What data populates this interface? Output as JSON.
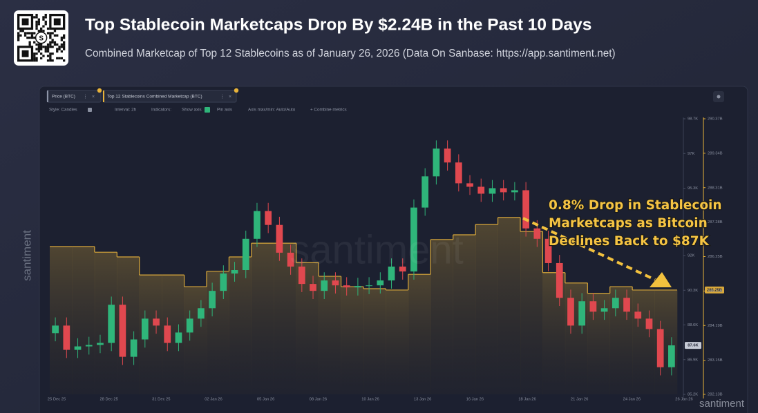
{
  "header": {
    "title": "Top Stablecoin Marketcaps Drop By $2.24B in the Past 10 Days",
    "subtitle": "Combined Marketcap of Top 12 Stablecoins as of January 26, 2026 (Data On Sanbase: https://app.santiment.net)"
  },
  "chart_data": {
    "type": "candlestick",
    "toolbar": [
      "Style: Candles",
      "Interval: 2h",
      "Indicators:",
      "Show axis",
      "Pin axis",
      "Axis max/min: Auto/Auto",
      "+ Combine metrics"
    ],
    "watermark": "santiment",
    "annotation": [
      "0.8% Drop in Stablecoin",
      "Marketcaps as Bitcoin",
      "Declines Back to $87K"
    ],
    "xtick_labels": [
      "25 Dec 25",
      "28 Dec 25",
      "31 Dec 25",
      "02 Jan 26",
      "05 Jan 26",
      "08 Jan 26",
      "10 Jan 26",
      "13 Jan 26",
      "16 Jan 26",
      "18 Jan 26",
      "21 Jan 26",
      "24 Jan 26",
      "26 Jan 26"
    ],
    "ylim": [
      85200,
      98700
    ],
    "yticks": [
      {
        "value": 98700,
        "label": "98.7K"
      },
      {
        "value": 97000,
        "label": "97K"
      },
      {
        "value": 95300,
        "label": "95.3K"
      },
      {
        "value": 93600,
        "label": "93.6K"
      },
      {
        "value": 92000,
        "label": "92K"
      },
      {
        "value": 90300,
        "label": "90.3K"
      },
      {
        "value": 88600,
        "label": "88.6K"
      },
      {
        "value": 86900,
        "label": "86.9K"
      },
      {
        "value": 85200,
        "label": "85.2K"
      }
    ],
    "y2lim": [
      282.13,
      290.37
    ],
    "y2ticks": [
      {
        "value": 290.37,
        "label": "290.37B"
      },
      {
        "value": 289.34,
        "label": "289.34B"
      },
      {
        "value": 288.31,
        "label": "288.31B"
      },
      {
        "value": 287.28,
        "label": "287.28B"
      },
      {
        "value": 286.25,
        "label": "286.25B"
      },
      {
        "value": 285.22,
        "label": "285.22B"
      },
      {
        "value": 284.19,
        "label": "284.19B"
      },
      {
        "value": 283.15,
        "label": "283.15B"
      },
      {
        "value": 282.13,
        "label": "282.13B"
      }
    ],
    "series": [
      {
        "name": "Price (BTC)",
        "type": "candlestick",
        "up_color": "#2fb57a",
        "down_color": "#e0484f",
        "open": [
          88200,
          88570,
          87380,
          87550,
          87620,
          87720,
          89590,
          87040,
          87890,
          88910,
          88570,
          87720,
          88230,
          88910,
          89420,
          90270,
          91120,
          91290,
          92820,
          94180,
          93500,
          92140,
          91460,
          90610,
          90270,
          90780,
          90540,
          90440,
          90510,
          90540,
          90780,
          91460,
          91220,
          94350,
          95880,
          97240,
          96560,
          95540,
          95370,
          95030,
          95300,
          95100,
          95200,
          93330,
          92820,
          91630,
          89930,
          88570,
          89760,
          89250,
          89420,
          89930,
          89250,
          88910,
          88400,
          86530
        ],
        "high": [
          88970,
          88970,
          87950,
          88020,
          88120,
          89990,
          89990,
          88290,
          89310,
          89310,
          88970,
          88630,
          89310,
          89820,
          90670,
          91520,
          91690,
          93220,
          94580,
          94580,
          93900,
          92540,
          91860,
          91010,
          91180,
          91180,
          90940,
          90910,
          90940,
          91180,
          91860,
          91860,
          94750,
          96280,
          97640,
          97640,
          96960,
          95940,
          95770,
          95700,
          95700,
          95600,
          95600,
          93730,
          93220,
          92030,
          90330,
          90160,
          90160,
          89820,
          90330,
          90330,
          89650,
          89310,
          88800,
          88000
        ],
        "low": [
          87800,
          86980,
          86980,
          87150,
          87220,
          87320,
          86640,
          86640,
          87490,
          88170,
          87320,
          87320,
          87830,
          88510,
          89020,
          89870,
          90720,
          90890,
          92420,
          93100,
          91740,
          91060,
          90210,
          89870,
          89870,
          90140,
          90040,
          90040,
          90110,
          90140,
          90380,
          90820,
          90820,
          93950,
          95480,
          96160,
          95140,
          94970,
          94630,
          94630,
          94700,
          94700,
          92930,
          92420,
          91230,
          89530,
          88170,
          88170,
          88850,
          88850,
          89020,
          88850,
          88510,
          88000,
          86130,
          86130
        ],
        "close": [
          88570,
          87380,
          87550,
          87620,
          87720,
          89590,
          87040,
          87890,
          88910,
          88570,
          87720,
          88230,
          88910,
          89420,
          90270,
          91120,
          91290,
          92820,
          94180,
          93500,
          92140,
          91460,
          90610,
          90270,
          90780,
          90540,
          90440,
          90510,
          90540,
          90780,
          91460,
          91220,
          94350,
          95880,
          97240,
          96560,
          95540,
          95370,
          95030,
          95300,
          95100,
          95200,
          93330,
          92820,
          91630,
          89930,
          88570,
          89760,
          89250,
          89420,
          89930,
          89250,
          88910,
          88400,
          86530,
          87600
        ],
        "current_label": "87.6K"
      },
      {
        "name": "Top 12 Stablecoins Combined Marketcap (BTC)",
        "type": "step",
        "axis": "y2",
        "color": "#d9a83a",
        "values": [
          286.55,
          286.55,
          286.38,
          286.24,
          285.7,
          285.7,
          285.35,
          285.81,
          286.24,
          286.65,
          286.65,
          286.07,
          285.66,
          285.35,
          285.29,
          285.25,
          285.72,
          286.76,
          286.9,
          287.21,
          287.42,
          287.0,
          285.77,
          285.46,
          285.15,
          285.35,
          285.25,
          285.25
        ],
        "current_label": "285.25B"
      }
    ]
  }
}
